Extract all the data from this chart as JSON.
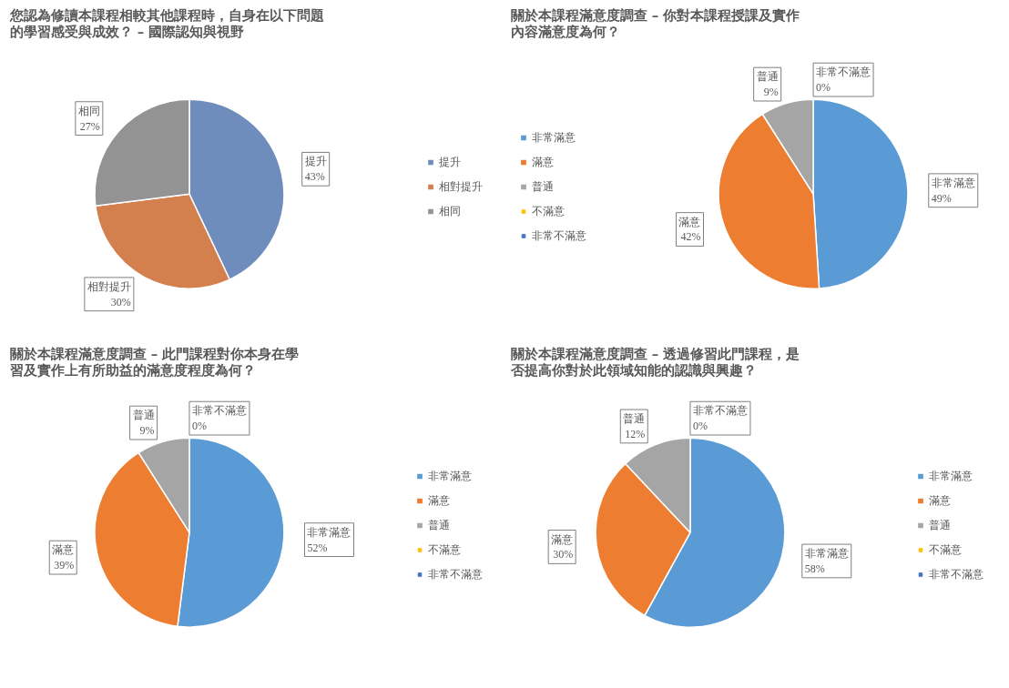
{
  "chart_data": [
    {
      "type": "pie",
      "title": "您認為修讀本課程相較其他課程時，自身在以下問題的學習感受與成效？ – 國際認知與視野",
      "categories": [
        "提升",
        "相對提升",
        "相同"
      ],
      "values": [
        43,
        30,
        27
      ],
      "colors": [
        "#6e8cbc",
        "#d37f4e",
        "#939393"
      ],
      "value_labels": [
        "43%",
        "30%",
        "27%"
      ],
      "legend": "right"
    },
    {
      "type": "pie",
      "title": "關於本課程滿意度調查 – 你對本課程授課及實作內容滿意度為何？",
      "categories": [
        "非常滿意",
        "滿意",
        "普通",
        "不滿意",
        "非常不滿意"
      ],
      "values": [
        49,
        42,
        9,
        0,
        0
      ],
      "colors": [
        "#5b9bd5",
        "#ed7d31",
        "#a5a5a5",
        "#ffc000",
        "#4472c4"
      ],
      "value_labels": [
        "49%",
        "42%",
        "9%",
        null,
        "0%"
      ],
      "legend": "left"
    },
    {
      "type": "pie",
      "title": "關於本課程滿意度調查 – 此門課程對你本身在學習及實作上有所助益的滿意度程度為何？",
      "categories": [
        "非常滿意",
        "滿意",
        "普通",
        "不滿意",
        "非常不滿意"
      ],
      "values": [
        52,
        39,
        9,
        0,
        0
      ],
      "colors": [
        "#5b9bd5",
        "#ed7d31",
        "#a5a5a5",
        "#ffc000",
        "#4472c4"
      ],
      "value_labels": [
        "52%",
        "39%",
        "9%",
        null,
        "0%"
      ],
      "legend": "right"
    },
    {
      "type": "pie",
      "title": "關於本課程滿意度調查 – 透過修習此門課程，是否提高你對於此領域知能的認識與興趣？",
      "categories": [
        "非常滿意",
        "滿意",
        "普通",
        "不滿意",
        "非常不滿意"
      ],
      "values": [
        58,
        30,
        12,
        0,
        0
      ],
      "colors": [
        "#5b9bd5",
        "#ed7d31",
        "#a5a5a5",
        "#ffc000",
        "#4472c4"
      ],
      "value_labels": [
        "58%",
        "30%",
        "12%",
        null,
        "0%"
      ],
      "legend": "right"
    }
  ]
}
